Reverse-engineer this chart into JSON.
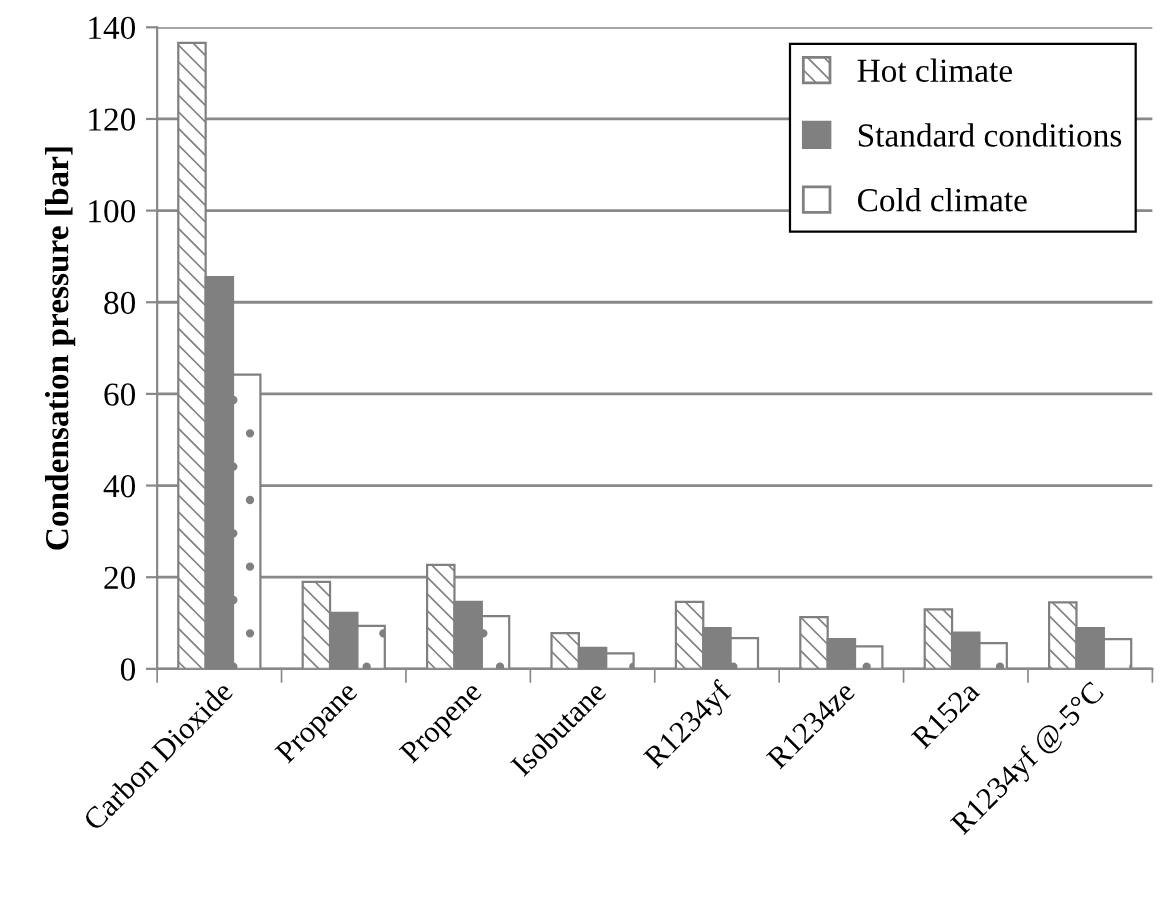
{
  "chart_data": {
    "type": "bar",
    "ylabel": "Condensation pressure [bar]",
    "categories": [
      "Carbon Dioxide",
      "Propane",
      "Propene",
      "Isobutane",
      "R1234yf",
      "R1234ze",
      "R152a",
      "R1234yf @-5°C"
    ],
    "series": [
      {
        "name": "Hot climate",
        "color": "#808080",
        "values": [
          136.6,
          19,
          22.7,
          7.8,
          14.6,
          11.3,
          13,
          14.5
        ]
      },
      {
        "name": "Standard conditions",
        "color": "#808080",
        "values": [
          85.5,
          12.2,
          14.6,
          4.6,
          8.9,
          6.5,
          7.9,
          8.9
        ]
      },
      {
        "name": "Cold climate",
        "color": "#808080",
        "values": [
          64.2,
          9.4,
          11.5,
          3.4,
          6.7,
          4.9,
          5.6,
          6.5
        ]
      }
    ],
    "ylim": [
      0,
      140
    ],
    "yticks": [
      0,
      20,
      40,
      60,
      80,
      100,
      120,
      140
    ],
    "grid": "y",
    "legend": "top right"
  }
}
